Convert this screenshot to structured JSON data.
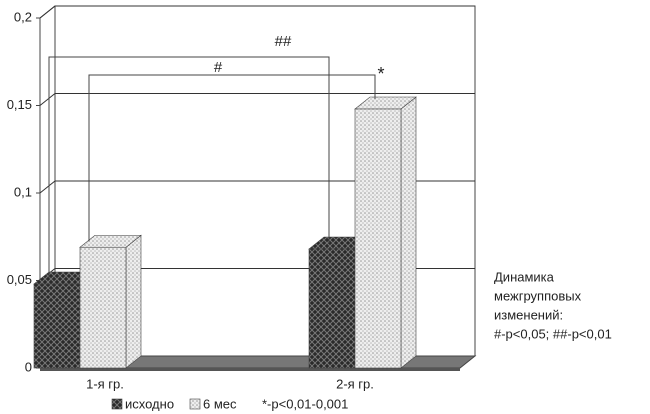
{
  "chart_data": {
    "type": "bar3d",
    "categories": [
      "1-я гр.",
      "2-я гр."
    ],
    "series": [
      {
        "name": "исходно",
        "color": "#333333",
        "values": [
          0.048,
          0.068
        ]
      },
      {
        "name": "6 мес",
        "color": "#e2e2e2",
        "values": [
          0.069,
          0.148
        ]
      }
    ],
    "ylim": [
      0,
      0.2
    ],
    "yticks": [
      0,
      {
        "value": 0.05,
        "label": "0,05"
      },
      {
        "value": 0.1,
        "label": "0,1"
      },
      {
        "value": 0.15,
        "label": "0,15"
      },
      {
        "value": 0.2,
        "label": "0,2"
      }
    ],
    "grid": true,
    "annotations": [
      "##",
      "#",
      "*"
    ],
    "legend_note": "*-p<0,01-0,001",
    "note": [
      "Динамика",
      "межгрупповых",
      "изменений:",
      "#-p<0,05; ##-p<0,01"
    ]
  }
}
